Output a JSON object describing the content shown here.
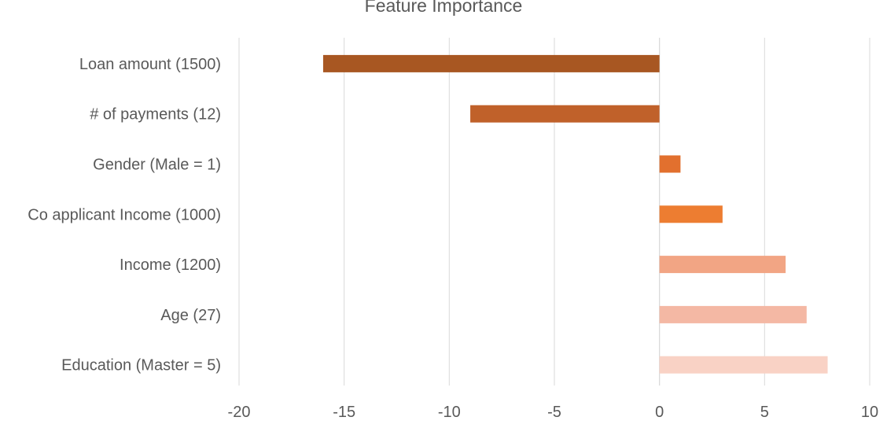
{
  "chart_data": {
    "type": "bar",
    "orientation": "horizontal",
    "title": "Feature Importance",
    "xlabel": "",
    "ylabel": "",
    "categories": [
      "Loan amount (1500)",
      "# of payments (12)",
      "Gender (Male = 1)",
      "Co applicant Income (1000)",
      "Income (1200)",
      "Age (27)",
      "Education (Master = 5)"
    ],
    "values": [
      -16,
      -9,
      1,
      3,
      6,
      7,
      8
    ],
    "colors": [
      "#a85722",
      "#c0612a",
      "#e2702e",
      "#ed7d31",
      "#f2a584",
      "#f4b8a4",
      "#f9d2c5"
    ],
    "xlim": [
      -20,
      10
    ],
    "xticks": [
      -20,
      -15,
      -10,
      -5,
      0,
      5,
      10
    ],
    "grid": true,
    "legend": "none"
  }
}
